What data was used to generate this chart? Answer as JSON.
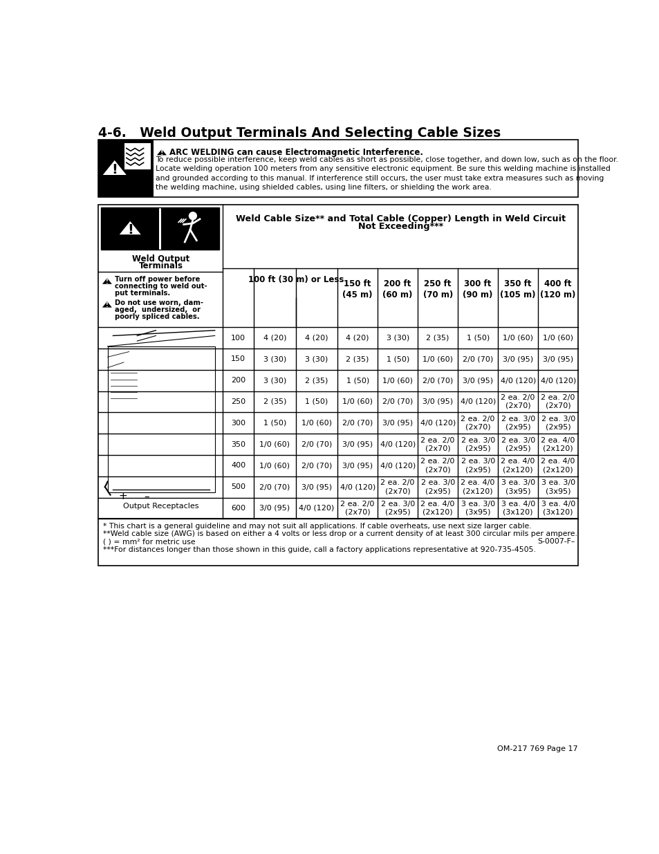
{
  "title": "4-6.   Weld Output Terminals And Selecting Cable Sizes",
  "page_footer": "OM-217 769 Page 17",
  "warning_bold": "ARC WELDING can cause Electromagnetic Interference.",
  "warning_text": "To reduce possible interference, keep weld cables as short as possible, close together, and down low, such as on the floor.\nLocate welding operation 100 meters from any sensitive electronic equipment. Be sure this welding machine is installed\nand grounded according to this manual. If interference still occurs, the user must take extra measures such as moving\nthe welding machine, using shielded cables, using line filters, or shielding the work area.",
  "table_title_line1": "Weld Cable Size** and Total Cable (Copper) Length in Weld Circuit",
  "table_title_line2": "Not Exceeding***",
  "left_label1": "Weld Output",
  "left_label2": "Terminals",
  "left_warn1_line1": "Turn off power before",
  "left_warn1_line2": "connecting to weld out-",
  "left_warn1_line3": "put terminals.",
  "left_warn2_line1": "Do not use worn, dam-",
  "left_warn2_line2": "aged,  undersized,  or",
  "left_warn2_line3": "poorly spliced cables.",
  "output_receptacles": "Output Receptacles",
  "col_header_100ft": "100 ft (30 m) or Less",
  "col_headers_rest": [
    "150 ft\n(45 m)",
    "200 ft\n(60 m)",
    "250 ft\n(70 m)",
    "300 ft\n(90 m)",
    "350 ft\n(105 m)",
    "400 ft\n(120 m)"
  ],
  "row_data": [
    [
      "100",
      "4 (20)",
      "4 (20)",
      "4 (20)",
      "3 (30)",
      "2 (35)",
      "1 (50)",
      "1/0 (60)",
      "1/0 (60)"
    ],
    [
      "150",
      "3 (30)",
      "3 (30)",
      "2 (35)",
      "1 (50)",
      "1/0 (60)",
      "2/0 (70)",
      "3/0 (95)",
      "3/0 (95)"
    ],
    [
      "200",
      "3 (30)",
      "2 (35)",
      "1 (50)",
      "1/0 (60)",
      "2/0 (70)",
      "3/0 (95)",
      "4/0 (120)",
      "4/0 (120)"
    ],
    [
      "250",
      "2 (35)",
      "1 (50)",
      "1/0 (60)",
      "2/0 (70)",
      "3/0 (95)",
      "4/0 (120)",
      "2 ea. 2/0\n(2x70)",
      "2 ea. 2/0\n(2x70)"
    ],
    [
      "300",
      "1 (50)",
      "1/0 (60)",
      "2/0 (70)",
      "3/0 (95)",
      "4/0 (120)",
      "2 ea. 2/0\n(2x70)",
      "2 ea. 3/0\n(2x95)",
      "2 ea. 3/0\n(2x95)"
    ],
    [
      "350",
      "1/0 (60)",
      "2/0 (70)",
      "3/0 (95)",
      "4/0 (120)",
      "2 ea. 2/0\n(2x70)",
      "2 ea. 3/0\n(2x95)",
      "2 ea. 3/0\n(2x95)",
      "2 ea. 4/0\n(2x120)"
    ],
    [
      "400",
      "1/0 (60)",
      "2/0 (70)",
      "3/0 (95)",
      "4/0 (120)",
      "2 ea. 2/0\n(2x70)",
      "2 ea. 3/0\n(2x95)",
      "2 ea. 4/0\n(2x120)",
      "2 ea. 4/0\n(2x120)"
    ],
    [
      "500",
      "2/0 (70)",
      "3/0 (95)",
      "4/0 (120)",
      "2 ea. 2/0\n(2x70)",
      "2 ea. 3/0\n(2x95)",
      "2 ea. 4/0\n(2x120)",
      "3 ea. 3/0\n(3x95)",
      "3 ea. 3/0\n(3x95)"
    ],
    [
      "600",
      "3/0 (95)",
      "4/0 (120)",
      "2 ea. 2/0\n(2x70)",
      "2 ea. 3/0\n(2x95)",
      "2 ea. 4/0\n(2x120)",
      "3 ea. 3/0\n(3x95)",
      "3 ea. 4/0\n(3x120)",
      "3 ea. 4/0\n(3x120)"
    ]
  ],
  "footnote1": "* This chart is a general guideline and may not suit all applications. If cable overheats, use next size larger cable.",
  "footnote2a": "**Weld cable size (AWG) is based on either a 4 volts or less drop or a current density of at least 300 circular mils per ampere.",
  "footnote2b": "( ) = mm² for metric use",
  "footnote2_right": "S-0007-F–",
  "footnote3": "***For distances longer than those shown in this guide, call a factory applications representative at 920-735-4505."
}
